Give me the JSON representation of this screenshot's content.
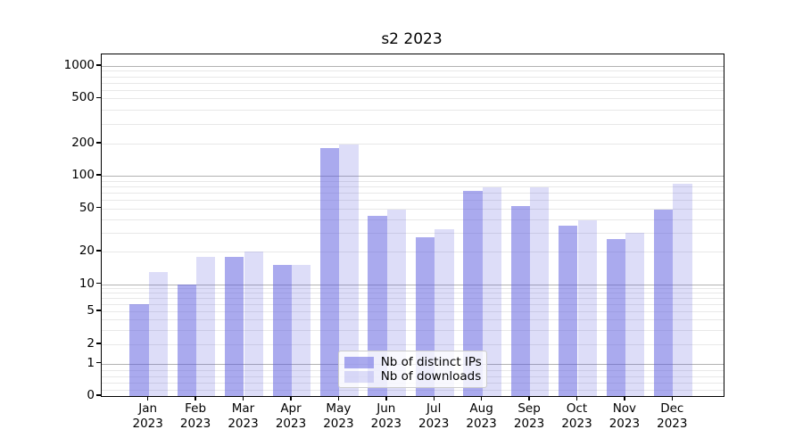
{
  "title": "s2 2023",
  "chart_data": {
    "type": "bar",
    "title": "s2 2023",
    "categories": [
      "Jan",
      "Feb",
      "Mar",
      "Apr",
      "May",
      "Jun",
      "Jul",
      "Aug",
      "Sep",
      "Oct",
      "Nov",
      "Dec"
    ],
    "category_year": "2023",
    "series": [
      {
        "name": "Nb of distinct IPs",
        "color": "rgba(85,85,221,0.5)",
        "values": [
          6,
          10,
          18,
          15,
          181,
          43,
          27,
          72,
          53,
          35,
          26,
          49
        ]
      },
      {
        "name": "Nb of downloads",
        "color": "rgba(85,85,221,0.2)",
        "values": [
          13,
          18,
          20,
          15,
          196,
          49,
          32,
          78,
          78,
          39,
          30,
          85
        ]
      }
    ],
    "y_axis": {
      "scale": "symlog",
      "ticks": [
        0,
        1,
        2,
        5,
        10,
        20,
        50,
        100,
        200,
        500,
        1000
      ],
      "range": [
        0,
        1000
      ]
    },
    "x_axis": {
      "label_format": "Mon 2023"
    },
    "grid": {
      "major_color": "#b2b2b2",
      "minor_color": "#e8e8e8",
      "on": true
    },
    "legend_location": "lower center inside"
  },
  "legend": {
    "items": [
      {
        "label": "Nb of distinct IPs"
      },
      {
        "label": "Nb of downloads"
      }
    ]
  },
  "colors": {
    "background": "#ffffff",
    "bar_dark": "rgba(85,85,221,0.5)",
    "bar_light": "rgba(85,85,221,0.2)",
    "spine": "#000000",
    "text": "#000000"
  }
}
